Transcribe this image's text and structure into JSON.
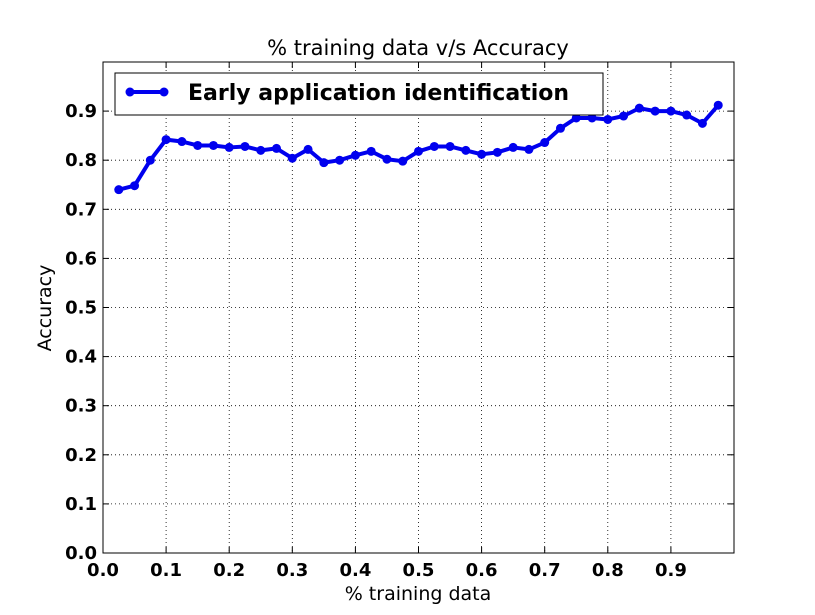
{
  "chart_data": {
    "type": "line",
    "title": "% training data v/s Accuracy",
    "xlabel": "% training data",
    "ylabel": "Accuracy",
    "xlim": [
      0.0,
      1.0
    ],
    "ylim": [
      0.0,
      1.0
    ],
    "xticks": [
      0.0,
      0.1,
      0.2,
      0.3,
      0.4,
      0.5,
      0.6,
      0.7,
      0.8,
      0.9
    ],
    "yticks": [
      0.0,
      0.1,
      0.2,
      0.3,
      0.4,
      0.5,
      0.6,
      0.7,
      0.8,
      0.9
    ],
    "xtick_labels": [
      "0.0",
      "0.1",
      "0.2",
      "0.3",
      "0.4",
      "0.5",
      "0.6",
      "0.7",
      "0.8",
      "0.9"
    ],
    "ytick_labels": [
      "0.0",
      "0.1",
      "0.2",
      "0.3",
      "0.4",
      "0.5",
      "0.6",
      "0.7",
      "0.8",
      "0.9"
    ],
    "grid": true,
    "legend_position": "top-left",
    "series": [
      {
        "name": "Early application identification",
        "color": "#0000ee",
        "x": [
          0.025,
          0.05,
          0.075,
          0.1,
          0.125,
          0.15,
          0.175,
          0.2,
          0.225,
          0.25,
          0.275,
          0.3,
          0.325,
          0.35,
          0.375,
          0.4,
          0.425,
          0.45,
          0.475,
          0.5,
          0.525,
          0.55,
          0.575,
          0.6,
          0.625,
          0.65,
          0.675,
          0.7,
          0.725,
          0.75,
          0.775,
          0.8,
          0.825,
          0.85,
          0.875,
          0.9,
          0.925,
          0.95,
          0.975
        ],
        "y": [
          0.74,
          0.748,
          0.8,
          0.842,
          0.838,
          0.83,
          0.83,
          0.826,
          0.828,
          0.82,
          0.824,
          0.804,
          0.822,
          0.795,
          0.8,
          0.81,
          0.818,
          0.802,
          0.798,
          0.818,
          0.828,
          0.828,
          0.82,
          0.812,
          0.816,
          0.826,
          0.822,
          0.836,
          0.865,
          0.886,
          0.886,
          0.883,
          0.89,
          0.906,
          0.9,
          0.9,
          0.892,
          0.875,
          0.912
        ]
      }
    ]
  }
}
